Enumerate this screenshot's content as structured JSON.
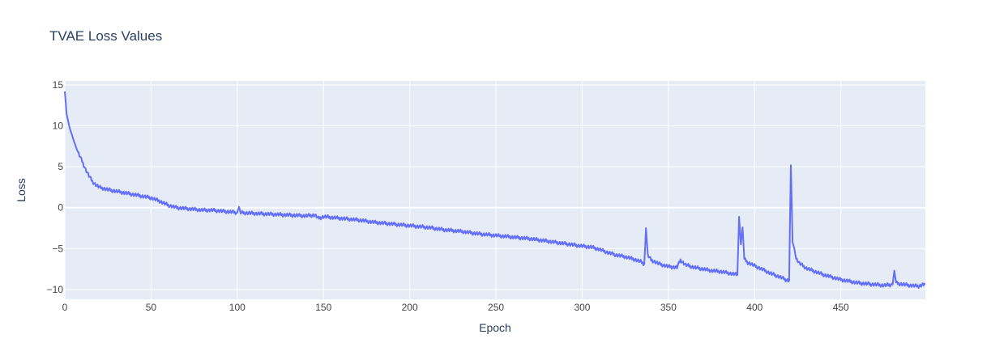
{
  "chart_data": {
    "type": "line",
    "title": "TVAE Loss Values",
    "xlabel": "Epoch",
    "ylabel": "Loss",
    "xlim": [
      0,
      499
    ],
    "ylim": [
      -11.2,
      15.5
    ],
    "grid": true,
    "legend": "none",
    "colors": {
      "line": "#636efa",
      "plot_bg": "#e5ecf6",
      "grid": "#ffffff",
      "text": "#2a3f5f"
    },
    "x_ticks": [
      {
        "value": 0,
        "label": "0"
      },
      {
        "value": 50,
        "label": "50"
      },
      {
        "value": 100,
        "label": "100"
      },
      {
        "value": 150,
        "label": "150"
      },
      {
        "value": 200,
        "label": "200"
      },
      {
        "value": 250,
        "label": "250"
      },
      {
        "value": 300,
        "label": "300"
      },
      {
        "value": 350,
        "label": "350"
      },
      {
        "value": 400,
        "label": "400"
      },
      {
        "value": 450,
        "label": "450"
      }
    ],
    "y_ticks": [
      {
        "value": 15,
        "label": "15"
      },
      {
        "value": 10,
        "label": "10"
      },
      {
        "value": 5,
        "label": "5"
      },
      {
        "value": 0,
        "label": "0"
      },
      {
        "value": -5,
        "label": "−5"
      },
      {
        "value": -10,
        "label": "−10"
      }
    ],
    "series": [
      {
        "x": [
          0,
          1,
          2,
          3,
          4,
          5,
          6,
          7,
          8,
          10,
          12,
          14,
          16,
          18,
          20,
          25,
          30,
          35,
          40,
          45,
          50,
          55,
          60,
          65,
          70,
          75,
          80,
          85,
          90,
          95,
          100,
          101,
          102,
          110,
          120,
          130,
          140,
          145,
          147,
          150,
          160,
          170,
          180,
          190,
          200,
          210,
          220,
          230,
          240,
          250,
          260,
          270,
          280,
          290,
          300,
          305,
          310,
          315,
          320,
          325,
          330,
          334,
          336,
          337,
          338,
          340,
          345,
          350,
          355,
          357,
          360,
          365,
          370,
          375,
          380,
          385,
          390,
          391,
          392,
          393,
          394,
          396,
          400,
          405,
          410,
          415,
          418,
          420,
          421,
          422,
          423,
          424,
          426,
          430,
          435,
          440,
          445,
          450,
          455,
          460,
          465,
          470,
          475,
          480,
          481,
          482,
          484,
          490,
          495,
          499
        ],
        "values": [
          14.2,
          11.5,
          10.5,
          9.6,
          9.0,
          8.3,
          7.7,
          7.1,
          6.6,
          5.7,
          4.7,
          3.9,
          3.2,
          2.8,
          2.5,
          2.2,
          2.0,
          1.8,
          1.6,
          1.4,
          1.2,
          0.8,
          0.3,
          0.0,
          -0.1,
          -0.2,
          -0.3,
          -0.3,
          -0.4,
          -0.5,
          -0.6,
          0.1,
          -0.6,
          -0.7,
          -0.8,
          -0.9,
          -1.0,
          -0.9,
          -1.3,
          -1.1,
          -1.3,
          -1.5,
          -1.8,
          -2.0,
          -2.2,
          -2.4,
          -2.7,
          -2.9,
          -3.2,
          -3.4,
          -3.6,
          -3.8,
          -4.1,
          -4.4,
          -4.7,
          -4.8,
          -5.1,
          -5.5,
          -5.8,
          -6.0,
          -6.3,
          -6.6,
          -6.9,
          -2.5,
          -5.8,
          -6.4,
          -6.9,
          -7.2,
          -7.3,
          -6.4,
          -7.0,
          -7.3,
          -7.5,
          -7.7,
          -7.8,
          -8.0,
          -8.2,
          -1.1,
          -4.5,
          -2.4,
          -6.3,
          -6.7,
          -7.1,
          -7.6,
          -8.1,
          -8.5,
          -8.8,
          -8.9,
          5.2,
          -4.2,
          -5.0,
          -6.2,
          -6.8,
          -7.4,
          -7.8,
          -8.2,
          -8.5,
          -8.8,
          -9.0,
          -9.2,
          -9.3,
          -9.4,
          -9.5,
          -9.4,
          -7.7,
          -9.2,
          -9.3,
          -9.5,
          -9.6,
          -9.3
        ]
      }
    ]
  }
}
